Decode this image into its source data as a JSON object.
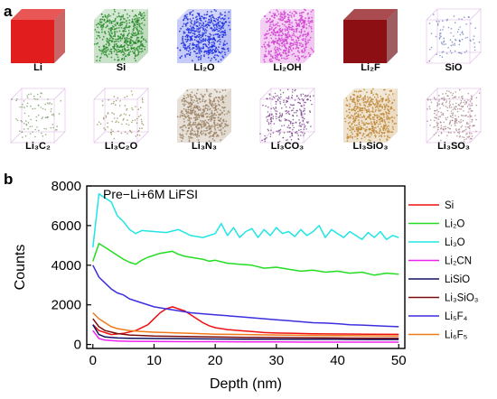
{
  "panel_a": {
    "letter": "a",
    "cubes": [
      {
        "label": "Li",
        "color": "#e11d1d",
        "style": "solid"
      },
      {
        "label": "Si",
        "color": "#2a8c2a",
        "style": "dense"
      },
      {
        "label": "Li₂O",
        "color": "#1c2fe0",
        "style": "dense"
      },
      {
        "label": "Li₂OH",
        "color": "#d142d1",
        "style": "dense"
      },
      {
        "label": "Li₂F",
        "color": "#8c0f14",
        "style": "solid"
      },
      {
        "label": "SiO",
        "color": "#5a6fb0",
        "style": "sparse"
      },
      {
        "label": "Li₃C₂",
        "color": "#6a8f55",
        "style": "sparse"
      },
      {
        "label": "Li₃C₂O",
        "color": "#8a7a40",
        "style": "sparse"
      },
      {
        "label": "Li₃N₃",
        "color": "#9c8466",
        "style": "dense"
      },
      {
        "label": "Li₃CO₃",
        "color": "#6a2d7a",
        "style": "medium"
      },
      {
        "label": "Li₃SiO₃",
        "color": "#c08a3a",
        "style": "dense"
      },
      {
        "label": "Li₃SO₃",
        "color": "#a07878",
        "style": "medium"
      }
    ]
  },
  "panel_b": {
    "letter": "b",
    "annotation": "Pre−Li+6M LiFSI"
  },
  "chart_data": {
    "type": "line",
    "title": "",
    "xlabel": "Depth (nm)",
    "ylabel": "Counts",
    "xlim": [
      -1,
      51
    ],
    "ylim": [
      -200,
      8000
    ],
    "xticks": [
      "0",
      "10",
      "20",
      "30",
      "40",
      "50"
    ],
    "yticks": [
      "0",
      "2000",
      "4000",
      "6000",
      "8000"
    ],
    "legend_position": "right",
    "series": [
      {
        "name": "Si",
        "color": "#ee1111",
        "x": [
          0,
          1,
          3,
          5,
          7,
          9,
          10,
          11,
          12,
          13,
          14,
          15,
          16,
          17,
          18,
          19,
          20,
          22,
          24,
          26,
          28,
          30,
          33,
          36,
          40,
          45,
          50
        ],
        "values": [
          1000,
          700,
          500,
          560,
          700,
          1000,
          1300,
          1600,
          1800,
          1900,
          1800,
          1700,
          1500,
          1300,
          1100,
          950,
          850,
          750,
          700,
          650,
          600,
          580,
          560,
          540,
          530,
          520,
          510
        ]
      },
      {
        "name": "Li₂O",
        "color": "#22dd22",
        "x": [
          0,
          1,
          2,
          3,
          4,
          5,
          6,
          7,
          8,
          9,
          10,
          11,
          12,
          13,
          14,
          15,
          16,
          17,
          18,
          19,
          20,
          22,
          24,
          26,
          28,
          30,
          32,
          34,
          36,
          38,
          40,
          42,
          44,
          46,
          48,
          50
        ],
        "values": [
          4200,
          5100,
          4900,
          4700,
          4500,
          4300,
          4150,
          4050,
          4250,
          4400,
          4500,
          4600,
          4650,
          4700,
          4550,
          4450,
          4400,
          4350,
          4300,
          4200,
          4250,
          4100,
          4050,
          4000,
          3850,
          3900,
          3800,
          3700,
          3750,
          3650,
          3700,
          3600,
          3650,
          3500,
          3600,
          3550
        ]
      },
      {
        "name": "Li₃O",
        "color": "#22e5e5",
        "x": [
          0,
          1,
          2,
          3,
          4,
          5,
          6,
          7,
          8,
          10,
          12,
          14,
          16,
          18,
          20,
          21,
          22,
          23,
          24,
          25,
          26,
          27,
          28,
          29,
          30,
          31,
          32,
          33,
          34,
          35,
          36,
          37,
          38,
          39,
          40,
          41,
          42,
          43,
          44,
          45,
          46,
          47,
          48,
          49,
          50
        ],
        "values": [
          4900,
          7600,
          7400,
          7200,
          6500,
          6200,
          5800,
          5600,
          5750,
          5700,
          5650,
          5800,
          5500,
          5400,
          5600,
          6100,
          5500,
          5900,
          5400,
          5700,
          5850,
          5400,
          5800,
          5500,
          5900,
          5600,
          5700,
          5450,
          5800,
          5500,
          5700,
          6000,
          5400,
          5800,
          5600,
          5400,
          5700,
          5500,
          5300,
          5650,
          5400,
          5700,
          5300,
          5500,
          5400
        ]
      },
      {
        "name": "Li₂CN",
        "color": "#ee22ee",
        "x": [
          0,
          1,
          2,
          4,
          6,
          10,
          15,
          20,
          25,
          30,
          35,
          40,
          45,
          50
        ],
        "values": [
          700,
          300,
          220,
          180,
          160,
          150,
          140,
          140,
          130,
          130,
          120,
          120,
          120,
          120
        ]
      },
      {
        "name": "LiSiO",
        "color": "#101060",
        "x": [
          0,
          1,
          2,
          4,
          6,
          10,
          15,
          20,
          25,
          30,
          35,
          40,
          45,
          50
        ],
        "values": [
          1000,
          500,
          380,
          330,
          310,
          300,
          290,
          280,
          270,
          270,
          260,
          260,
          250,
          250
        ]
      },
      {
        "name": "Li₃SiO₃",
        "color": "#7a0d0d",
        "x": [
          0,
          1,
          2,
          4,
          6,
          10,
          15,
          20,
          25,
          30,
          35,
          40,
          45,
          50
        ],
        "values": [
          1300,
          900,
          700,
          550,
          480,
          430,
          400,
          380,
          360,
          350,
          340,
          330,
          320,
          320
        ]
      },
      {
        "name": "Li₅F₄",
        "color": "#3c2ee0",
        "x": [
          0,
          1,
          2,
          3,
          4,
          5,
          6,
          8,
          10,
          12,
          14,
          16,
          18,
          20,
          22,
          24,
          26,
          28,
          30,
          32,
          34,
          36,
          38,
          40,
          42,
          44,
          46,
          48,
          50
        ],
        "values": [
          4000,
          3400,
          3100,
          2800,
          2600,
          2500,
          2300,
          2100,
          1900,
          1800,
          1700,
          1600,
          1550,
          1500,
          1450,
          1400,
          1350,
          1300,
          1250,
          1200,
          1150,
          1100,
          1080,
          1050,
          1000,
          980,
          950,
          920,
          900
        ]
      },
      {
        "name": "Li₆F₅",
        "color": "#f07a1a",
        "x": [
          0,
          1,
          2,
          3,
          4,
          5,
          6,
          8,
          10,
          12,
          14,
          16,
          18,
          20,
          25,
          30,
          35,
          40,
          45,
          50
        ],
        "values": [
          1600,
          1300,
          1100,
          900,
          800,
          750,
          700,
          650,
          620,
          600,
          580,
          560,
          540,
          520,
          500,
          480,
          460,
          450,
          440,
          430
        ]
      }
    ]
  }
}
